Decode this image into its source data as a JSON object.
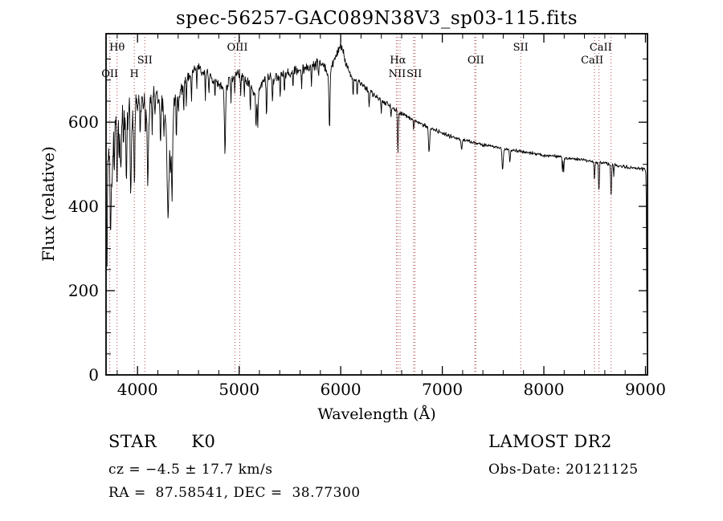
{
  "figure": {
    "annotations": {
      "class_label": "STAR      K0",
      "survey": "LAMOST DR2",
      "cz": "cz = −4.5 ± 17.7 km/s",
      "ra_dec": "RA =  87.58541, DEC =  38.77300",
      "obs_date": "Obs-Date: 20121125"
    }
  },
  "chart_data": {
    "type": "line",
    "title": "spec-56257-GAC089N38V3_sp03-115.fits",
    "xlabel": "Wavelength (Å)",
    "ylabel": "Flux (relative)",
    "xlim": [
      3690,
      9020
    ],
    "ylim": [
      0,
      810
    ],
    "xticks": [
      4000,
      5000,
      6000,
      7000,
      8000,
      9000
    ],
    "yticks": [
      0,
      200,
      400,
      600
    ],
    "x_minor_step": 200,
    "y_minor_step": 50,
    "grid": false,
    "legend": "none",
    "line_color": "#000000",
    "frame_color": "#000000",
    "marker_line_color": "#aa4444",
    "spectral_line_markers": [
      3727,
      3798,
      3968,
      4072,
      4959,
      5007,
      6548,
      6563,
      6584,
      6717,
      6731,
      7320,
      7330,
      7772,
      8498,
      8542,
      8662
    ],
    "spectral_line_labels": [
      {
        "text": "Hθ",
        "wavelength": 3798,
        "row": 0
      },
      {
        "text": "OII",
        "wavelength": 3727,
        "row": 2
      },
      {
        "text": "SII",
        "wavelength": 4072,
        "row": 1
      },
      {
        "text": "H",
        "wavelength": 3968,
        "row": 2
      },
      {
        "text": "OIII",
        "wavelength": 4983,
        "row": 0
      },
      {
        "text": "Hα",
        "wavelength": 6563,
        "row": 1
      },
      {
        "text": "NII",
        "wavelength": 6556,
        "row": 2
      },
      {
        "text": "SII",
        "wavelength": 6724,
        "row": 2
      },
      {
        "text": "OII",
        "wavelength": 7330,
        "row": 1
      },
      {
        "text": "SII",
        "wavelength": 7772,
        "row": 0
      },
      {
        "text": "CaII",
        "wavelength": 8475,
        "row": 1
      },
      {
        "text": "CaII",
        "wavelength": 8560,
        "row": 0
      }
    ],
    "series": [
      {
        "name": "spectrum",
        "noise_seed": 12345,
        "anchors": [
          [
            3700,
            545
          ],
          [
            3715,
            505
          ],
          [
            3730,
            475
          ],
          [
            3745,
            445
          ],
          [
            3758,
            540
          ],
          [
            3772,
            585
          ],
          [
            3788,
            600
          ],
          [
            3805,
            588
          ],
          [
            3825,
            602
          ],
          [
            3845,
            612
          ],
          [
            3868,
            603
          ],
          [
            3892,
            592
          ],
          [
            3912,
            632
          ],
          [
            3940,
            622
          ],
          [
            3968,
            615
          ],
          [
            3990,
            645
          ],
          [
            4010,
            652
          ],
          [
            4030,
            632
          ],
          [
            4050,
            650
          ],
          [
            4070,
            645
          ],
          [
            4090,
            636
          ],
          [
            4110,
            618
          ],
          [
            4130,
            652
          ],
          [
            4155,
            672
          ],
          [
            4180,
            665
          ],
          [
            4205,
            656
          ],
          [
            4230,
            646
          ],
          [
            4255,
            636
          ],
          [
            4278,
            606
          ],
          [
            4298,
            548
          ],
          [
            4318,
            566
          ],
          [
            4338,
            584
          ],
          [
            4362,
            652
          ],
          [
            4388,
            662
          ],
          [
            4412,
            672
          ],
          [
            4442,
            690
          ],
          [
            4472,
            700
          ],
          [
            4502,
            706
          ],
          [
            4532,
            716
          ],
          [
            4562,
            726
          ],
          [
            4592,
            730
          ],
          [
            4622,
            722
          ],
          [
            4652,
            716
          ],
          [
            4682,
            716
          ],
          [
            4712,
            710
          ],
          [
            4742,
            702
          ],
          [
            4772,
            696
          ],
          [
            4802,
            690
          ],
          [
            4832,
            682
          ],
          [
            4862,
            668
          ],
          [
            4892,
            696
          ],
          [
            4922,
            702
          ],
          [
            4952,
            710
          ],
          [
            4982,
            716
          ],
          [
            5012,
            716
          ],
          [
            5042,
            706
          ],
          [
            5072,
            696
          ],
          [
            5102,
            690
          ],
          [
            5132,
            676
          ],
          [
            5162,
            662
          ],
          [
            5192,
            676
          ],
          [
            5222,
            690
          ],
          [
            5252,
            700
          ],
          [
            5282,
            706
          ],
          [
            5312,
            706
          ],
          [
            5342,
            700
          ],
          [
            5372,
            706
          ],
          [
            5402,
            710
          ],
          [
            5432,
            712
          ],
          [
            5462,
            715
          ],
          [
            5492,
            716
          ],
          [
            5522,
            718
          ],
          [
            5552,
            722
          ],
          [
            5582,
            720
          ],
          [
            5612,
            726
          ],
          [
            5642,
            728
          ],
          [
            5672,
            731
          ],
          [
            5702,
            735
          ],
          [
            5732,
            732
          ],
          [
            5762,
            738
          ],
          [
            5792,
            740
          ],
          [
            5822,
            735
          ],
          [
            5852,
            726
          ],
          [
            5882,
            702
          ],
          [
            5912,
            731
          ],
          [
            5942,
            751
          ],
          [
            5972,
            768
          ],
          [
            6002,
            788
          ],
          [
            6022,
            766
          ],
          [
            6042,
            748
          ],
          [
            6062,
            732
          ],
          [
            6092,
            716
          ],
          [
            6122,
            706
          ],
          [
            6152,
            700
          ],
          [
            6182,
            695
          ],
          [
            6212,
            690
          ],
          [
            6242,
            683
          ],
          [
            6272,
            676
          ],
          [
            6302,
            670
          ],
          [
            6332,
            664
          ],
          [
            6362,
            658
          ],
          [
            6392,
            653
          ],
          [
            6422,
            649
          ],
          [
            6452,
            645
          ],
          [
            6482,
            640
          ],
          [
            6512,
            636
          ],
          [
            6542,
            630
          ],
          [
            6572,
            622
          ],
          [
            6602,
            620
          ],
          [
            6632,
            616
          ],
          [
            6662,
            612
          ],
          [
            6692,
            608
          ],
          [
            6722,
            604
          ],
          [
            6752,
            600
          ],
          [
            6782,
            597
          ],
          [
            6812,
            594
          ],
          [
            6842,
            591
          ],
          [
            6882,
            585
          ],
          [
            6922,
            582
          ],
          [
            6962,
            578
          ],
          [
            7002,
            574
          ],
          [
            7052,
            569
          ],
          [
            7102,
            565
          ],
          [
            7152,
            561
          ],
          [
            7202,
            558
          ],
          [
            7252,
            555
          ],
          [
            7302,
            552
          ],
          [
            7352,
            549
          ],
          [
            7402,
            546
          ],
          [
            7452,
            544
          ],
          [
            7502,
            542
          ],
          [
            7552,
            540
          ],
          [
            7602,
            537
          ],
          [
            7652,
            535
          ],
          [
            7702,
            533
          ],
          [
            7752,
            531
          ],
          [
            7802,
            529
          ],
          [
            7852,
            527
          ],
          [
            7902,
            526
          ],
          [
            7952,
            524
          ],
          [
            8002,
            522
          ],
          [
            8052,
            521
          ],
          [
            8102,
            519
          ],
          [
            8152,
            517
          ],
          [
            8202,
            515
          ],
          [
            8252,
            514
          ],
          [
            8302,
            512
          ],
          [
            8352,
            511
          ],
          [
            8402,
            510
          ],
          [
            8452,
            508
          ],
          [
            8502,
            506
          ],
          [
            8552,
            504
          ],
          [
            8602,
            502
          ],
          [
            8652,
            500
          ],
          [
            8702,
            498
          ],
          [
            8752,
            496
          ],
          [
            8802,
            494
          ],
          [
            8852,
            492
          ],
          [
            8902,
            491
          ],
          [
            8952,
            489
          ],
          [
            9000,
            487
          ],
          [
            9005,
            478
          ],
          [
            9009,
            400
          ],
          [
            9012,
            200
          ],
          [
            9016,
            55
          ]
        ],
        "absorption_features": [
          [
            3700,
            300,
            3
          ],
          [
            3735,
            150,
            4
          ],
          [
            3771,
            90,
            3
          ],
          [
            3798,
            140,
            4
          ],
          [
            3820,
            80,
            3
          ],
          [
            3835,
            150,
            4
          ],
          [
            3862,
            70,
            3
          ],
          [
            3889,
            160,
            4
          ],
          [
            3934,
            210,
            5
          ],
          [
            3969,
            190,
            5
          ],
          [
            4026,
            70,
            3
          ],
          [
            4077,
            80,
            3
          ],
          [
            4101,
            180,
            5
          ],
          [
            4144,
            80,
            3
          ],
          [
            4172,
            60,
            3
          ],
          [
            4226,
            110,
            4
          ],
          [
            4260,
            70,
            3
          ],
          [
            4300,
            175,
            9
          ],
          [
            4325,
            90,
            4
          ],
          [
            4340,
            165,
            5
          ],
          [
            4383,
            110,
            4
          ],
          [
            4405,
            60,
            3
          ],
          [
            4455,
            80,
            3
          ],
          [
            4481,
            60,
            3
          ],
          [
            4531,
            70,
            3
          ],
          [
            4583,
            50,
            3
          ],
          [
            4668,
            70,
            3
          ],
          [
            4703,
            50,
            3
          ],
          [
            4762,
            45,
            3
          ],
          [
            4861,
            150,
            5
          ],
          [
            4920,
            55,
            3
          ],
          [
            4957,
            45,
            3
          ],
          [
            5015,
            55,
            3
          ],
          [
            5051,
            40,
            3
          ],
          [
            5110,
            55,
            3
          ],
          [
            5167,
            85,
            4
          ],
          [
            5183,
            85,
            4
          ],
          [
            5270,
            85,
            4
          ],
          [
            5329,
            60,
            3
          ],
          [
            5405,
            60,
            3
          ],
          [
            5446,
            45,
            3
          ],
          [
            5530,
            45,
            3
          ],
          [
            5616,
            40,
            3
          ],
          [
            5711,
            45,
            3
          ],
          [
            5782,
            35,
            3
          ],
          [
            5890,
            120,
            5
          ],
          [
            6122,
            45,
            3
          ],
          [
            6162,
            40,
            3
          ],
          [
            6280,
            35,
            4
          ],
          [
            6400,
            30,
            3
          ],
          [
            6495,
            30,
            3
          ],
          [
            6563,
            100,
            4
          ],
          [
            6717,
            25,
            3
          ],
          [
            6870,
            55,
            6
          ],
          [
            7190,
            25,
            5
          ],
          [
            7594,
            50,
            6
          ],
          [
            7665,
            30,
            4
          ],
          [
            8183,
            35,
            3
          ],
          [
            8195,
            35,
            3
          ],
          [
            8498,
            45,
            4
          ],
          [
            8542,
            75,
            4
          ],
          [
            8662,
            80,
            4
          ],
          [
            8688,
            30,
            3
          ]
        ],
        "noise_segments": [
          {
            "from": 3700,
            "to": 4000,
            "amp": 42
          },
          {
            "from": 4000,
            "to": 4460,
            "amp": 26
          },
          {
            "from": 4460,
            "to": 6060,
            "amp": 15
          },
          {
            "from": 6060,
            "to": 6600,
            "amp": 8
          },
          {
            "from": 6600,
            "to": 7100,
            "amp": 6
          },
          {
            "from": 7100,
            "to": 8400,
            "amp": 5
          },
          {
            "from": 8400,
            "to": 9020,
            "amp": 5
          }
        ]
      }
    ]
  }
}
